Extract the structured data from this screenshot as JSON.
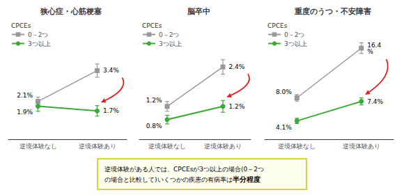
{
  "chart_data": [
    {
      "type": "line",
      "title": "狭心症・心筋梗塞",
      "categories": [
        "逆境体験なし",
        "逆境体験あり"
      ],
      "series": [
        {
          "name": "0－2つ",
          "color": "#999999",
          "marker": "square",
          "values": [
            2.1,
            3.4
          ],
          "errors": [
            0.18,
            0.28
          ],
          "value_labels": [
            "2.1%",
            "3.4%"
          ]
        },
        {
          "name": "3つ以上",
          "color": "#3aaa35",
          "marker": "circle",
          "values": [
            1.9,
            1.7
          ],
          "errors": [
            0.22,
            0.22
          ],
          "value_labels": [
            "1.9%",
            "1.7%"
          ]
        }
      ],
      "ylim": [
        0.5,
        5.5
      ],
      "grid": false,
      "tick_labels": "x",
      "legend": "upper left",
      "legend_title": "CPCEs",
      "arrow_color": "#e0201a"
    },
    {
      "type": "line",
      "title": "脳卒中",
      "categories": [
        "逆境体験なし",
        "逆境体験あり"
      ],
      "series": [
        {
          "name": "0－2つ",
          "color": "#999999",
          "marker": "square",
          "values": [
            1.2,
            2.4
          ],
          "errors": [
            0.15,
            0.22
          ],
          "value_labels": [
            "1.2%",
            "2.4%"
          ]
        },
        {
          "name": "3つ以上",
          "color": "#3aaa35",
          "marker": "circle",
          "values": [
            0.8,
            1.2
          ],
          "errors": [
            0.13,
            0.18
          ],
          "value_labels": [
            "0.8%",
            "1.2%"
          ]
        }
      ],
      "ylim": [
        0.2,
        3.8
      ],
      "grid": false,
      "tick_labels": "x",
      "legend": "upper left",
      "legend_title": "CPCEs",
      "arrow_color": "#e0201a"
    },
    {
      "type": "line",
      "title": "重度のうつ・不安障害",
      "categories": [
        "逆境体験なし",
        "逆境体験あり"
      ],
      "series": [
        {
          "name": "0－2つ",
          "color": "#999999",
          "marker": "square",
          "values": [
            8.0,
            16.4
          ],
          "errors": [
            0.55,
            0.9
          ],
          "value_labels": [
            "8.0%",
            "16.4\n%"
          ]
        },
        {
          "name": "3つ以上",
          "color": "#3aaa35",
          "marker": "circle",
          "values": [
            4.1,
            7.4
          ],
          "errors": [
            0.45,
            0.6
          ],
          "value_labels": [
            "4.1%",
            "7.4%"
          ]
        }
      ],
      "ylim": [
        1.0,
        21.0
      ],
      "grid": false,
      "tick_labels": "x",
      "legend": "upper left",
      "legend_title": "CPCEs",
      "arrow_color": "#e0201a"
    }
  ],
  "annotations": [
    {
      "lines": [
        "逆境体験がある人では、CPCEsが3つ以上の場合(0～2つ",
        "の場合と比較して)いくつかの疾患の有病率は"
      ],
      "bold": "半分程度",
      "color": "#fffff0",
      "edge_color": "#c8c800"
    }
  ]
}
